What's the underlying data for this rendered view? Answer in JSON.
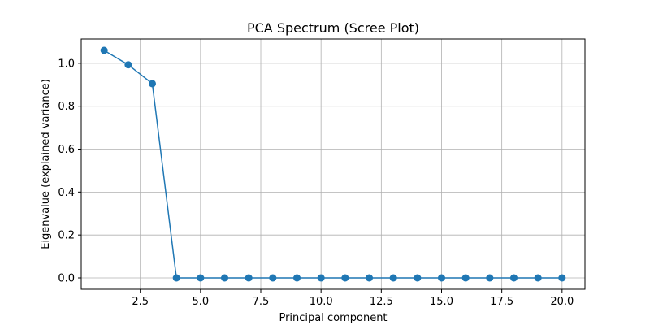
{
  "chart_data": {
    "type": "line",
    "title": "PCA Spectrum (Scree Plot)",
    "xlabel": "Principal component",
    "ylabel": "Eigenvalue (explained variance)",
    "xlim": [
      0.05,
      20.95
    ],
    "ylim": [
      -0.053,
      1.113
    ],
    "xticks": [
      2.5,
      5.0,
      7.5,
      10.0,
      12.5,
      15.0,
      17.5,
      20.0
    ],
    "xtick_labels": [
      "2.5",
      "5.0",
      "7.5",
      "10.0",
      "12.5",
      "15.0",
      "17.5",
      "20.0"
    ],
    "yticks": [
      0.0,
      0.2,
      0.4,
      0.6,
      0.8,
      1.0
    ],
    "ytick_labels": [
      "0.0",
      "0.2",
      "0.4",
      "0.6",
      "0.8",
      "1.0"
    ],
    "grid": true,
    "line_color": "#1f77b4",
    "marker": "circle",
    "x": [
      1,
      2,
      3,
      4,
      5,
      6,
      7,
      8,
      9,
      10,
      11,
      12,
      13,
      14,
      15,
      16,
      17,
      18,
      19,
      20
    ],
    "y": [
      1.06,
      0.993,
      0.905,
      0,
      0,
      0,
      0,
      0,
      0,
      0,
      0,
      0,
      0,
      0,
      0,
      0,
      0,
      0,
      0,
      0
    ]
  }
}
